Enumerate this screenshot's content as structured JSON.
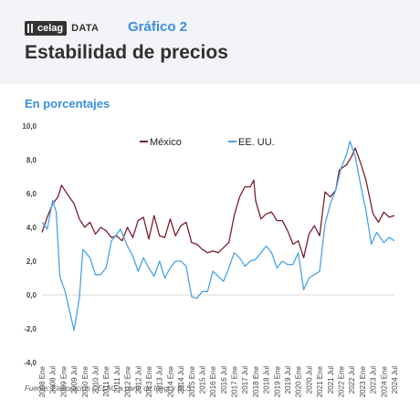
{
  "header": {
    "brand_logo": "celag",
    "brand_data": "DATA",
    "chart_tag": "Gráfico 2",
    "title": "Estabilidad de precios"
  },
  "subtitle": "En porcentajes",
  "source": "Fuente: Elaboración CELAG a partir de Inegi y BLS.",
  "colors": {
    "mexico": "#7b1f2c",
    "usa": "#4aa3e8",
    "accent": "#3c8de0"
  },
  "chart_data": {
    "type": "line",
    "title": "Estabilidad de precios",
    "subtitle": "En porcentajes",
    "xlabel": "",
    "ylabel": "",
    "ylim": [
      -4,
      10
    ],
    "yticks": [
      "-4,0",
      "-2,0",
      "0,0",
      "2,0",
      "4,0",
      "6,0",
      "8,0",
      "10,0"
    ],
    "x_tick_labels": [
      "2008 Ene",
      "2008 Jul",
      "2009 Ene",
      "2009 Jul",
      "2010 Ene",
      "2010 Jul",
      "2011 Ene",
      "2011 Jul",
      "2012 Ene",
      "2012 Jul",
      "2013 Ene",
      "2013 Jul",
      "2014 Ene",
      "2014 Jul",
      "2015 Ene",
      "2015 Jul",
      "2016 Ene",
      "2016 Jul",
      "2017 Ene",
      "2017 Jul",
      "2018 Ene",
      "2018 Jul",
      "2019 Ene",
      "2019 Jul",
      "2020 Ene",
      "2020 Jul",
      "2021 Ene",
      "2021 Jul",
      "2022 Ene",
      "2022 Jul",
      "2023 Ene",
      "2023 Jul",
      "2024 Ene",
      "2024 Jul"
    ],
    "legend_position": "top-center",
    "grid": false,
    "series": [
      {
        "name": "México",
        "points": [
          [
            "2008 Ene",
            3.7
          ],
          [
            "2008 Abr",
            4.6
          ],
          [
            "2008 Jul",
            5.4
          ],
          [
            "2008 Oct",
            5.8
          ],
          [
            "2008 Dic",
            6.5
          ],
          [
            "2009 Mar",
            6.0
          ],
          [
            "2009 Jul",
            5.4
          ],
          [
            "2009 Oct",
            4.5
          ],
          [
            "2010 Ene",
            4.0
          ],
          [
            "2010 Abr",
            4.3
          ],
          [
            "2010 Jul",
            3.6
          ],
          [
            "2010 Oct",
            4.0
          ],
          [
            "2011 Ene",
            3.8
          ],
          [
            "2011 Abr",
            3.4
          ],
          [
            "2011 Jul",
            3.5
          ],
          [
            "2011 Oct",
            3.2
          ],
          [
            "2012 Ene",
            4.0
          ],
          [
            "2012 Abr",
            3.4
          ],
          [
            "2012 Jul",
            4.4
          ],
          [
            "2012 Oct",
            4.6
          ],
          [
            "2013 Ene",
            3.3
          ],
          [
            "2013 Abr",
            4.7
          ],
          [
            "2013 Jul",
            3.5
          ],
          [
            "2013 Oct",
            3.4
          ],
          [
            "2014 Ene",
            4.5
          ],
          [
            "2014 Abr",
            3.5
          ],
          [
            "2014 Jul",
            4.1
          ],
          [
            "2014 Oct",
            4.3
          ],
          [
            "2015 Ene",
            3.1
          ],
          [
            "2015 Abr",
            3.0
          ],
          [
            "2015 Jul",
            2.7
          ],
          [
            "2015 Oct",
            2.5
          ],
          [
            "2016 Ene",
            2.6
          ],
          [
            "2016 Abr",
            2.5
          ],
          [
            "2016 Jul",
            2.8
          ],
          [
            "2016 Oct",
            3.1
          ],
          [
            "2017 Ene",
            4.7
          ],
          [
            "2017 Abr",
            5.8
          ],
          [
            "2017 Jul",
            6.4
          ],
          [
            "2017 Oct",
            6.4
          ],
          [
            "2017 Dic",
            6.8
          ],
          [
            "2018 Ene",
            5.6
          ],
          [
            "2018 Abr",
            4.5
          ],
          [
            "2018 Jul",
            4.8
          ],
          [
            "2018 Oct",
            4.9
          ],
          [
            "2019 Ene",
            4.4
          ],
          [
            "2019 Abr",
            4.4
          ],
          [
            "2019 Jul",
            3.8
          ],
          [
            "2019 Oct",
            3.0
          ],
          [
            "2020 Ene",
            3.2
          ],
          [
            "2020 Abr",
            2.2
          ],
          [
            "2020 Jul",
            3.6
          ],
          [
            "2020 Oct",
            4.1
          ],
          [
            "2021 Ene",
            3.5
          ],
          [
            "2021 Abr",
            6.1
          ],
          [
            "2021 Jul",
            5.8
          ],
          [
            "2021 Oct",
            6.2
          ],
          [
            "2021 Dic",
            7.4
          ],
          [
            "2022 Abr",
            7.7
          ],
          [
            "2022 Jul",
            8.2
          ],
          [
            "2022 Sep",
            8.7
          ],
          [
            "2022 Dic",
            7.8
          ],
          [
            "2023 Mar",
            6.8
          ],
          [
            "2023 Jul",
            4.8
          ],
          [
            "2023 Oct",
            4.3
          ],
          [
            "2024 Ene",
            4.9
          ],
          [
            "2024 Abr",
            4.6
          ],
          [
            "2024 Jul",
            4.7
          ]
        ]
      },
      {
        "name": "EE. UU.",
        "points": [
          [
            "2008 Ene",
            4.3
          ],
          [
            "2008 Abr",
            3.9
          ],
          [
            "2008 Jul",
            5.6
          ],
          [
            "2008 Sep",
            4.9
          ],
          [
            "2008 Nov",
            1.1
          ],
          [
            "2009 Feb",
            0.2
          ],
          [
            "2009 Jul",
            -2.1
          ],
          [
            "2009 Oct",
            -0.2
          ],
          [
            "2009 Dic",
            2.7
          ],
          [
            "2010 Abr",
            2.2
          ],
          [
            "2010 Jul",
            1.2
          ],
          [
            "2010 Oct",
            1.2
          ],
          [
            "2011 Ene",
            1.6
          ],
          [
            "2011 Abr",
            3.2
          ],
          [
            "2011 Jul",
            3.6
          ],
          [
            "2011 Sep",
            3.9
          ],
          [
            "2012 Ene",
            2.9
          ],
          [
            "2012 Abr",
            2.3
          ],
          [
            "2012 Jul",
            1.4
          ],
          [
            "2012 Oct",
            2.2
          ],
          [
            "2013 Ene",
            1.6
          ],
          [
            "2013 Abr",
            1.1
          ],
          [
            "2013 Jul",
            2.0
          ],
          [
            "2013 Oct",
            1.0
          ],
          [
            "2014 Ene",
            1.6
          ],
          [
            "2014 Abr",
            2.0
          ],
          [
            "2014 Jul",
            2.0
          ],
          [
            "2014 Oct",
            1.7
          ],
          [
            "2015 Ene",
            -0.1
          ],
          [
            "2015 Abr",
            -0.2
          ],
          [
            "2015 Jul",
            0.2
          ],
          [
            "2015 Oct",
            0.2
          ],
          [
            "2016 Ene",
            1.4
          ],
          [
            "2016 Abr",
            1.1
          ],
          [
            "2016 Jul",
            0.8
          ],
          [
            "2016 Oct",
            1.6
          ],
          [
            "2017 Ene",
            2.5
          ],
          [
            "2017 Abr",
            2.2
          ],
          [
            "2017 Jul",
            1.7
          ],
          [
            "2017 Oct",
            2.0
          ],
          [
            "2018 Ene",
            2.1
          ],
          [
            "2018 Abr",
            2.5
          ],
          [
            "2018 Jul",
            2.9
          ],
          [
            "2018 Oct",
            2.5
          ],
          [
            "2019 Ene",
            1.6
          ],
          [
            "2019 Abr",
            2.0
          ],
          [
            "2019 Jul",
            1.8
          ],
          [
            "2019 Oct",
            1.8
          ],
          [
            "2020 Ene",
            2.5
          ],
          [
            "2020 Abr",
            0.3
          ],
          [
            "2020 Jul",
            1.0
          ],
          [
            "2020 Oct",
            1.2
          ],
          [
            "2021 Ene",
            1.4
          ],
          [
            "2021 Abr",
            4.2
          ],
          [
            "2021 Jul",
            5.4
          ],
          [
            "2021 Oct",
            6.2
          ],
          [
            "2022 Ene",
            7.5
          ],
          [
            "2022 Abr",
            8.3
          ],
          [
            "2022 Jun",
            9.1
          ],
          [
            "2022 Sep",
            8.2
          ],
          [
            "2022 Dic",
            6.5
          ],
          [
            "2023 Mar",
            5.0
          ],
          [
            "2023 Jun",
            3.0
          ],
          [
            "2023 Sep",
            3.7
          ],
          [
            "2024 Ene",
            3.1
          ],
          [
            "2024 Abr",
            3.4
          ],
          [
            "2024 Jul",
            3.2
          ]
        ]
      }
    ]
  }
}
